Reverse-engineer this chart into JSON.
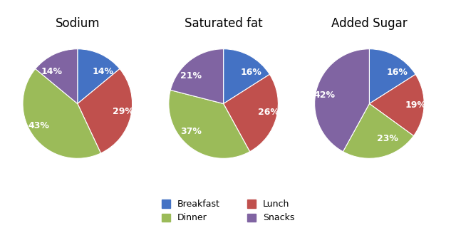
{
  "charts": [
    {
      "title": "Sodium",
      "values": [
        14,
        29,
        43,
        14
      ],
      "labels": [
        "14%",
        "29%",
        "43%",
        "14%"
      ],
      "startangle": 90
    },
    {
      "title": "Saturated fat",
      "values": [
        16,
        26,
        37,
        21
      ],
      "labels": [
        "16%",
        "26%",
        "37%",
        "21%"
      ],
      "startangle": 90
    },
    {
      "title": "Added Sugar",
      "values": [
        16,
        19,
        23,
        42
      ],
      "labels": [
        "16%",
        "19%",
        "23%",
        "42%"
      ],
      "startangle": 90
    }
  ],
  "colors": [
    "#4472C4",
    "#C0504D",
    "#9BBB59",
    "#8064A2"
  ],
  "legend_labels": [
    "Breakfast",
    "Lunch",
    "Dinner",
    "Snacks"
  ],
  "background_color": "#ffffff",
  "title_fontsize": 12,
  "label_fontsize": 9
}
